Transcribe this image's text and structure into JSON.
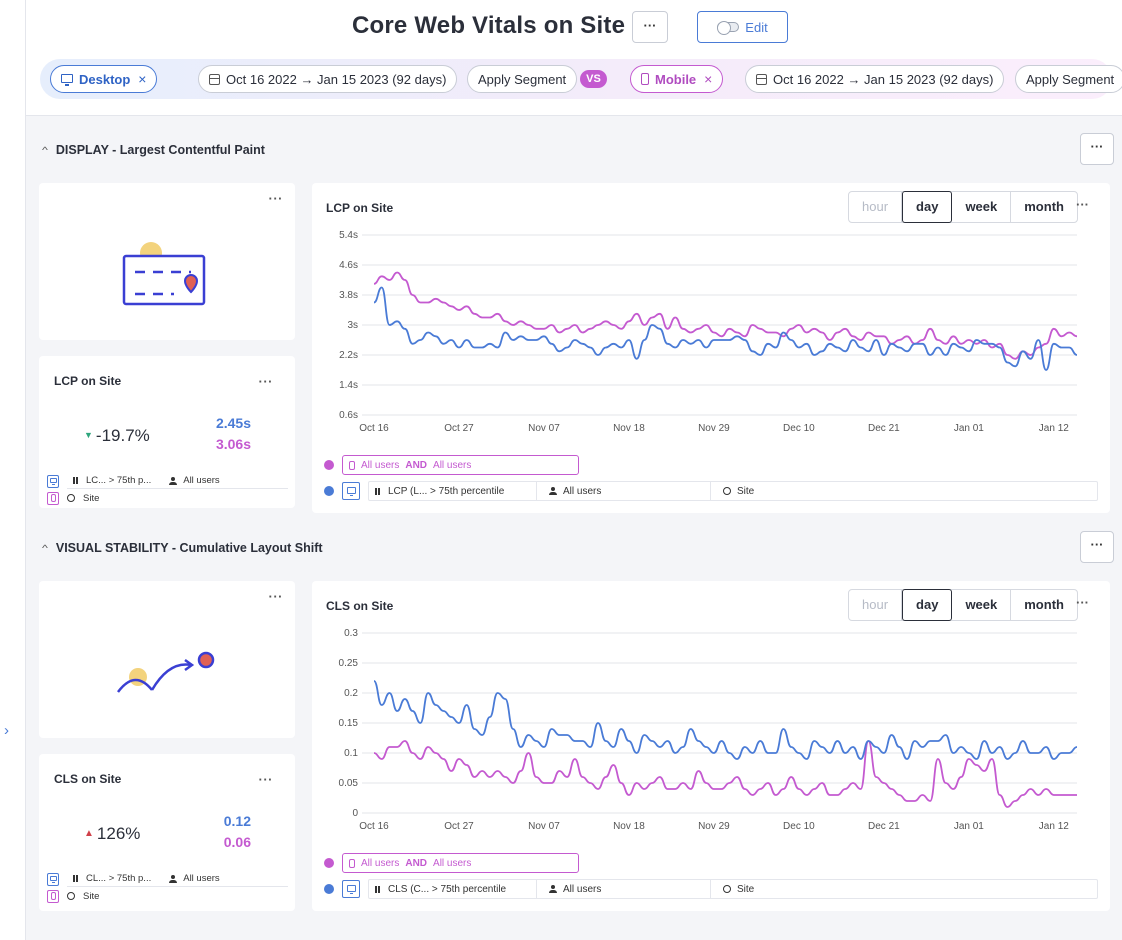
{
  "header": {
    "title": "Core Web Vitals on Site",
    "edit_label": "Edit"
  },
  "segments": {
    "left": {
      "device": "Desktop",
      "date_range": "Oct 16 2022 → Jan 15 2023 (92 days)",
      "apply": "Apply Segment"
    },
    "vs": "VS",
    "right": {
      "device": "Mobile",
      "date_range": "Oct 16 2022 → Jan 15 2023 (92 days)",
      "apply": "Apply Segment"
    }
  },
  "granularity": [
    "hour",
    "day",
    "week",
    "month"
  ],
  "selected_granularity": "day",
  "colors": {
    "desktop": "#4a7bd6",
    "mobile": "#c45ad0"
  },
  "sections": [
    {
      "title": "DISPLAY - Largest Contentful Paint",
      "illustration_icon": "calendar-pin-icon",
      "summary": {
        "title": "LCP on Site",
        "delta": "-19.7%",
        "delta_direction": "down",
        "desktop_value": "2.45s",
        "mobile_value": "3.06s",
        "legend_metric": "LC... > 75th p...",
        "legend_users": "All users",
        "legend_scope": "Site"
      },
      "chart": {
        "title": "LCP on Site",
        "mobile_segment_prefix": "All users",
        "mobile_segment_and": "AND",
        "mobile_segment_suffix": "All users",
        "desktop_metric": "LCP (L... > 75th percentile",
        "desktop_users": "All users",
        "desktop_scope": "Site"
      }
    },
    {
      "title": "VISUAL STABILITY - Cumulative Layout Shift",
      "illustration_icon": "bounce-arrow-icon",
      "summary": {
        "title": "CLS on Site",
        "delta": "126%",
        "delta_direction": "up",
        "desktop_value": "0.12",
        "mobile_value": "0.06",
        "legend_metric": "CL... > 75th p...",
        "legend_users": "All users",
        "legend_scope": "Site"
      },
      "chart": {
        "title": "CLS on Site",
        "mobile_segment_prefix": "All users",
        "mobile_segment_and": "AND",
        "mobile_segment_suffix": "All users",
        "desktop_metric": "CLS (C... > 75th percentile",
        "desktop_users": "All users",
        "desktop_scope": "Site"
      }
    }
  ],
  "chart_data": [
    {
      "type": "line",
      "title": "LCP on Site",
      "x_tick_labels": [
        "Oct 16",
        "Oct 27",
        "Nov 07",
        "Nov 18",
        "Nov 29",
        "Dec 10",
        "Dec 21",
        "Jan 01",
        "Jan 12"
      ],
      "y_tick_labels": [
        "5.4s",
        "4.6s",
        "3.8s",
        "3s",
        "2.2s",
        "1.4s",
        "0.6s"
      ],
      "ylim": [
        0.6,
        5.4
      ],
      "unit": "s",
      "x_start": "2022-10-16",
      "grid": true,
      "series": [
        {
          "name": "Desktop",
          "color": "#4a7bd6",
          "values": [
            3.6,
            4.0,
            3.0,
            3.1,
            2.9,
            2.5,
            2.6,
            2.8,
            2.7,
            2.5,
            2.6,
            2.4,
            2.6,
            2.4,
            2.4,
            2.5,
            2.4,
            2.8,
            2.6,
            2.7,
            2.6,
            2.6,
            2.7,
            2.5,
            2.3,
            2.4,
            2.6,
            2.5,
            2.4,
            2.2,
            2.4,
            2.5,
            2.4,
            2.6,
            2.1,
            2.6,
            3.0,
            2.9,
            2.5,
            2.4,
            2.6,
            2.5,
            2.6,
            2.4,
            2.6,
            2.6,
            2.6,
            2.7,
            2.6,
            2.3,
            2.2,
            2.5,
            2.4,
            2.8,
            2.6,
            2.4,
            2.5,
            2.2,
            2.3,
            2.5,
            2.4,
            2.3,
            2.6,
            2.4,
            2.3,
            2.6,
            2.2,
            2.5,
            2.4,
            2.3,
            2.5,
            2.5,
            2.2,
            2.4,
            2.2,
            2.5,
            2.4,
            2.3,
            2.6,
            2.5,
            2.5,
            2.4,
            2.0,
            1.9,
            2.3,
            2.1,
            2.6,
            1.8,
            2.5,
            2.4,
            2.4,
            2.2
          ]
        },
        {
          "name": "Mobile",
          "color": "#c45ad0",
          "values": [
            4.1,
            4.3,
            4.2,
            4.4,
            4.2,
            3.8,
            3.6,
            3.6,
            3.7,
            3.6,
            3.5,
            3.4,
            3.5,
            3.3,
            3.2,
            3.2,
            3.3,
            3.1,
            3.0,
            3.1,
            3.0,
            2.9,
            2.9,
            3.0,
            2.8,
            2.9,
            3.0,
            2.8,
            2.9,
            3.0,
            3.1,
            3.0,
            2.9,
            3.1,
            3.3,
            3.0,
            3.2,
            3.3,
            2.9,
            3.2,
            2.9,
            2.8,
            2.9,
            3.0,
            2.8,
            2.7,
            2.9,
            2.8,
            2.7,
            3.0,
            2.9,
            2.8,
            2.8,
            2.7,
            2.9,
            3.0,
            2.8,
            2.9,
            2.8,
            2.6,
            2.8,
            2.9,
            2.7,
            2.6,
            2.8,
            2.7,
            2.7,
            2.5,
            2.6,
            2.7,
            2.5,
            2.6,
            2.9,
            2.6,
            2.5,
            2.7,
            2.5,
            2.6,
            2.5,
            2.6,
            2.4,
            2.5,
            2.2,
            2.1,
            2.3,
            2.2,
            2.4,
            2.5,
            2.9,
            2.7,
            2.8,
            2.7
          ]
        }
      ]
    },
    {
      "type": "line",
      "title": "CLS on Site",
      "x_tick_labels": [
        "Oct 16",
        "Oct 27",
        "Nov 07",
        "Nov 18",
        "Nov 29",
        "Dec 10",
        "Dec 21",
        "Jan 01",
        "Jan 12"
      ],
      "y_tick_labels": [
        "0.3",
        "0.25",
        "0.2",
        "0.15",
        "0.1",
        "0.05",
        "0"
      ],
      "ylim": [
        0,
        0.3
      ],
      "x_start": "2022-10-16",
      "grid": true,
      "series": [
        {
          "name": "Desktop",
          "color": "#4a7bd6",
          "values": [
            0.22,
            0.18,
            0.2,
            0.17,
            0.19,
            0.17,
            0.15,
            0.2,
            0.18,
            0.17,
            0.16,
            0.15,
            0.18,
            0.14,
            0.13,
            0.16,
            0.2,
            0.19,
            0.14,
            0.11,
            0.13,
            0.12,
            0.11,
            0.14,
            0.13,
            0.13,
            0.12,
            0.12,
            0.11,
            0.15,
            0.12,
            0.11,
            0.14,
            0.12,
            0.1,
            0.13,
            0.12,
            0.11,
            0.12,
            0.1,
            0.11,
            0.14,
            0.12,
            0.11,
            0.1,
            0.12,
            0.1,
            0.09,
            0.11,
            0.1,
            0.12,
            0.1,
            0.1,
            0.14,
            0.11,
            0.1,
            0.09,
            0.12,
            0.11,
            0.1,
            0.12,
            0.1,
            0.11,
            0.09,
            0.12,
            0.11,
            0.1,
            0.13,
            0.11,
            0.09,
            0.12,
            0.11,
            0.12,
            0.12,
            0.13,
            0.1,
            0.11,
            0.1,
            0.09,
            0.12,
            0.1,
            0.11,
            0.09,
            0.1,
            0.12,
            0.1,
            0.1,
            0.11,
            0.09,
            0.1,
            0.1,
            0.11
          ]
        },
        {
          "name": "Mobile",
          "color": "#c45ad0",
          "values": [
            0.1,
            0.09,
            0.11,
            0.11,
            0.12,
            0.1,
            0.09,
            0.11,
            0.1,
            0.09,
            0.07,
            0.09,
            0.08,
            0.06,
            0.07,
            0.06,
            0.07,
            0.06,
            0.05,
            0.07,
            0.1,
            0.06,
            0.05,
            0.05,
            0.07,
            0.06,
            0.09,
            0.06,
            0.05,
            0.04,
            0.06,
            0.08,
            0.05,
            0.03,
            0.05,
            0.04,
            0.05,
            0.06,
            0.04,
            0.04,
            0.05,
            0.04,
            0.07,
            0.05,
            0.04,
            0.04,
            0.05,
            0.06,
            0.04,
            0.03,
            0.04,
            0.05,
            0.03,
            0.04,
            0.06,
            0.04,
            0.03,
            0.04,
            0.05,
            0.03,
            0.03,
            0.04,
            0.05,
            0.04,
            0.12,
            0.06,
            0.05,
            0.04,
            0.03,
            0.02,
            0.02,
            0.03,
            0.02,
            0.09,
            0.05,
            0.04,
            0.06,
            0.09,
            0.08,
            0.07,
            0.09,
            0.03,
            0.01,
            0.02,
            0.03,
            0.04,
            0.03,
            0.04,
            0.03,
            0.03,
            0.03,
            0.03
          ]
        }
      ]
    }
  ]
}
